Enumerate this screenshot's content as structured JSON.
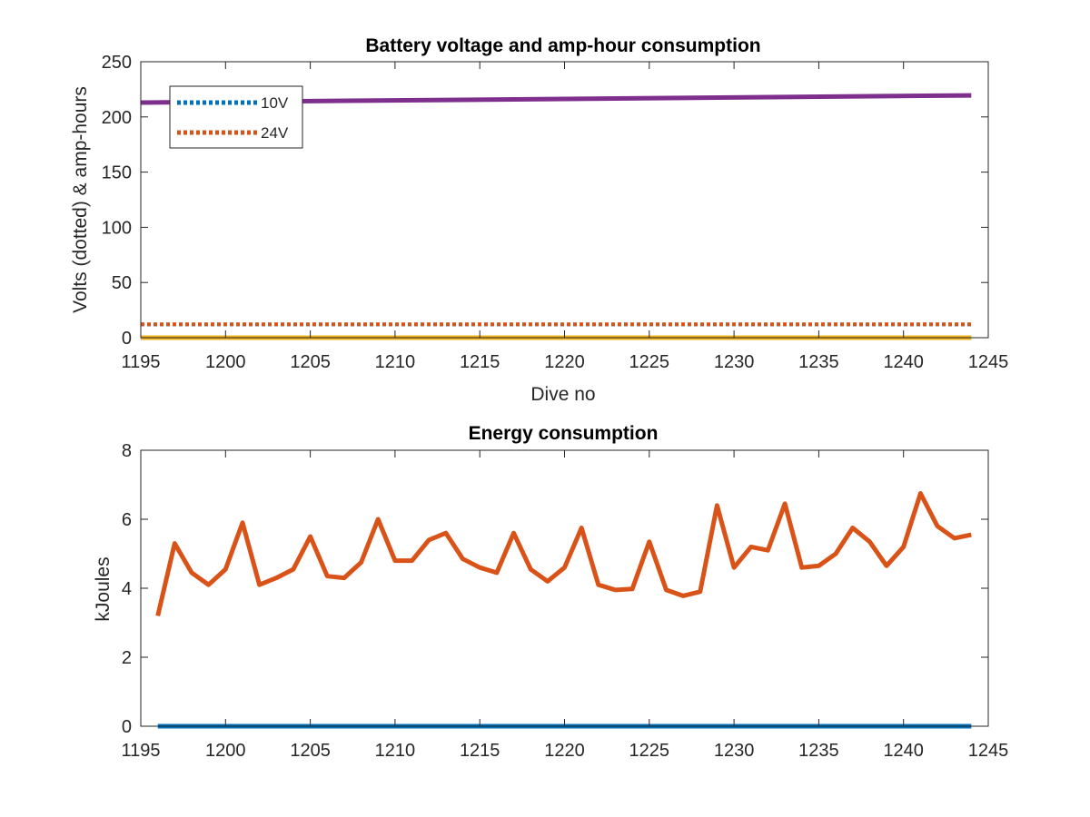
{
  "chart_data": [
    {
      "type": "line",
      "title": "Battery voltage and amp-hour consumption",
      "xlabel": "Dive no",
      "ylabel": "Volts (dotted) & amp-hours",
      "xlim": [
        1195,
        1245
      ],
      "ylim": [
        0,
        250
      ],
      "xticks": [
        1195,
        1200,
        1205,
        1210,
        1215,
        1220,
        1225,
        1230,
        1235,
        1240,
        1245
      ],
      "yticks": [
        0,
        50,
        100,
        150,
        200,
        250
      ],
      "grid": false,
      "legend": {
        "location": "top-left",
        "entries": [
          "10V",
          "24V"
        ]
      },
      "series": [
        {
          "name": "10V",
          "color": "#0072BD",
          "style": "dotted",
          "x": [
            1195,
            1244
          ],
          "y": [
            12,
            12
          ]
        },
        {
          "name": "24V",
          "color": "#D95319",
          "style": "dotted",
          "x": [
            1195,
            1244
          ],
          "y": [
            12.2,
            12.2
          ]
        },
        {
          "color": "#EDB120",
          "style": "solid",
          "x": [
            1195,
            1244
          ],
          "y": [
            0,
            0
          ]
        },
        {
          "color": "#7E2F8E",
          "style": "solid",
          "x": [
            1195,
            1244
          ],
          "y": [
            213,
            219.5
          ]
        }
      ]
    },
    {
      "type": "line",
      "title": "Energy consumption",
      "xlabel": "",
      "ylabel": "kJoules",
      "xlim": [
        1195,
        1245
      ],
      "ylim": [
        0,
        8
      ],
      "xticks": [
        1195,
        1200,
        1205,
        1210,
        1215,
        1220,
        1225,
        1230,
        1235,
        1240,
        1245
      ],
      "yticks": [
        0,
        2,
        4,
        6,
        8
      ],
      "grid": false,
      "series": [
        {
          "color": "#0072BD",
          "style": "solid",
          "x": [
            1196,
            1244
          ],
          "y": [
            0,
            0
          ]
        },
        {
          "color": "#D95319",
          "style": "solid",
          "x": [
            1196,
            1197,
            1198,
            1199,
            1200,
            1201,
            1202,
            1203,
            1204,
            1205,
            1206,
            1207,
            1208,
            1209,
            1210,
            1211,
            1212,
            1213,
            1214,
            1215,
            1216,
            1217,
            1218,
            1219,
            1220,
            1221,
            1222,
            1223,
            1224,
            1225,
            1226,
            1227,
            1228,
            1229,
            1230,
            1231,
            1232,
            1233,
            1234,
            1235,
            1236,
            1237,
            1238,
            1239,
            1240,
            1241,
            1242,
            1243,
            1244
          ],
          "y": [
            3.2,
            5.3,
            4.45,
            4.1,
            4.55,
            5.9,
            4.1,
            4.3,
            4.55,
            5.5,
            4.35,
            4.3,
            4.75,
            6.0,
            4.8,
            4.8,
            5.4,
            5.6,
            4.85,
            4.6,
            4.45,
            5.6,
            4.55,
            4.2,
            4.6,
            5.75,
            4.1,
            3.95,
            3.98,
            5.35,
            3.95,
            3.78,
            3.9,
            6.4,
            4.6,
            5.2,
            5.1,
            6.45,
            4.6,
            4.65,
            5.0,
            5.75,
            5.35,
            4.65,
            5.2,
            6.75,
            5.8,
            5.45,
            5.55
          ]
        }
      ]
    }
  ]
}
